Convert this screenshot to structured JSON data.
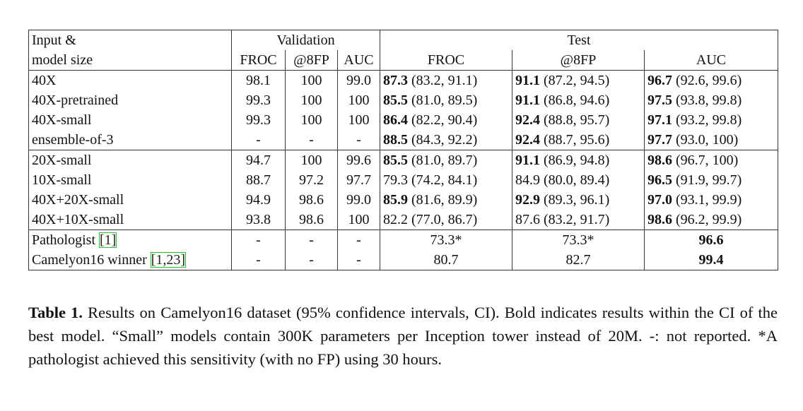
{
  "table": {
    "header": {
      "input": [
        "Input &",
        "model size"
      ],
      "validation": "Validation",
      "test": "Test",
      "sub": [
        "FROC",
        "@8FP",
        "AUC",
        "FROC",
        "@8FP",
        "AUC"
      ]
    },
    "groups": [
      {
        "rows": [
          {
            "label": "40X",
            "validation": [
              "98.1",
              "100",
              "99.0"
            ],
            "test": [
              {
                "main": "87.3",
                "ci": "(83.2, 91.1)",
                "bold": true
              },
              {
                "main": "91.1",
                "ci": "(87.2, 94.5)",
                "bold": true
              },
              {
                "main": "96.7",
                "ci": "(92.6, 99.6)",
                "bold": true
              }
            ]
          },
          {
            "label": "40X-pretrained",
            "validation": [
              "99.3",
              "100",
              "100"
            ],
            "test": [
              {
                "main": "85.5",
                "ci": "(81.0, 89.5)",
                "bold": true
              },
              {
                "main": "91.1",
                "ci": "(86.8, 94.6)",
                "bold": true
              },
              {
                "main": "97.5",
                "ci": "(93.8, 99.8)",
                "bold": true
              }
            ]
          },
          {
            "label": "40X-small",
            "validation": [
              "99.3",
              "100",
              "100"
            ],
            "test": [
              {
                "main": "86.4",
                "ci": "(82.2, 90.4)",
                "bold": true
              },
              {
                "main": "92.4",
                "ci": "(88.8, 95.7)",
                "bold": true
              },
              {
                "main": "97.1",
                "ci": "(93.2, 99.8)",
                "bold": true
              }
            ]
          },
          {
            "label": "ensemble-of-3",
            "validation": [
              "-",
              "-",
              "-"
            ],
            "test": [
              {
                "main": "88.5",
                "ci": "(84.3, 92.2)",
                "bold": true
              },
              {
                "main": "92.4",
                "ci": "(88.7, 95.6)",
                "bold": true
              },
              {
                "main": "97.7",
                "ci": "(93.0, 100)",
                "bold": true
              }
            ]
          }
        ]
      },
      {
        "rows": [
          {
            "label": "20X-small",
            "validation": [
              "94.7",
              "100",
              "99.6"
            ],
            "test": [
              {
                "main": "85.5",
                "ci": "(81.0, 89.7)",
                "bold": true
              },
              {
                "main": "91.1",
                "ci": "(86.9, 94.8)",
                "bold": true
              },
              {
                "main": "98.6",
                "ci": "(96.7, 100)",
                "bold": true
              }
            ]
          },
          {
            "label": "10X-small",
            "validation": [
              "88.7",
              "97.2",
              "97.7"
            ],
            "test": [
              {
                "main": "79.3",
                "ci": "(74.2, 84.1)",
                "bold": false
              },
              {
                "main": "84.9",
                "ci": "(80.0, 89.4)",
                "bold": false
              },
              {
                "main": "96.5",
                "ci": "(91.9, 99.7)",
                "bold": true
              }
            ]
          },
          {
            "label": "40X+20X-small",
            "validation": [
              "94.9",
              "98.6",
              "99.0"
            ],
            "test": [
              {
                "main": "85.9",
                "ci": "(81.6, 89.9)",
                "bold": true
              },
              {
                "main": "92.9",
                "ci": "(89.3, 96.1)",
                "bold": true
              },
              {
                "main": "97.0",
                "ci": "(93.1, 99.9)",
                "bold": true
              }
            ]
          },
          {
            "label": "40X+10X-small",
            "validation": [
              "93.8",
              "98.6",
              "100"
            ],
            "test": [
              {
                "main": "82.2",
                "ci": "(77.0, 86.7)",
                "bold": false
              },
              {
                "main": "87.6",
                "ci": "(83.2, 91.7)",
                "bold": false
              },
              {
                "main": "98.6",
                "ci": "(96.2, 99.9)",
                "bold": true
              }
            ]
          }
        ]
      },
      {
        "rows": [
          {
            "label": "Pathologist",
            "ref": "[1]",
            "validation": [
              "-",
              "-",
              "-"
            ],
            "test": [
              {
                "main": "73.3*",
                "bold": false
              },
              {
                "main": "73.3*",
                "bold": false
              },
              {
                "main": "96.6",
                "bold": true
              }
            ]
          },
          {
            "label": "Camelyon16 winner",
            "ref": "[1,23]",
            "validation": [
              "-",
              "-",
              "-"
            ],
            "test": [
              {
                "main": "80.7",
                "bold": false
              },
              {
                "main": "82.7",
                "bold": false
              },
              {
                "main": "99.4",
                "bold": true
              }
            ]
          }
        ]
      }
    ]
  },
  "caption": {
    "label": "Table 1.",
    "text": "Results on Camelyon16 dataset (95% confidence intervals, CI). Bold indicates results within the CI of the best model. “Small” models contain 300K parameters per Inception tower instead of 20M. -: not reported. *A pathologist achieved this sensitivity (with no FP) using 30 hours."
  }
}
